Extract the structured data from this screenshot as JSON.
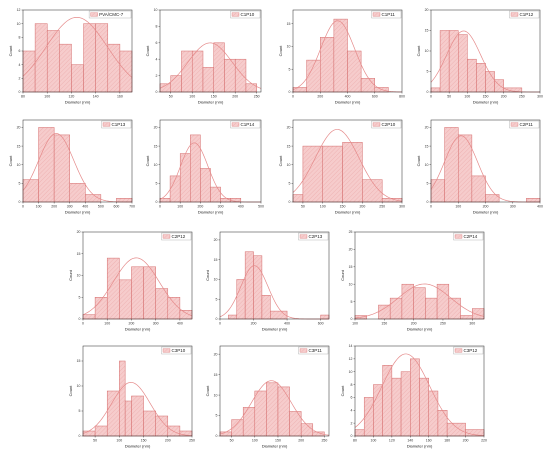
{
  "defaults": {
    "ylabel": "Count",
    "xlabel": "Diameter (nm)"
  },
  "colors": {
    "bar_fill": "#f6cccc",
    "bar_stroke": "#d46a6a",
    "curve": "#e58a8a",
    "hatch": "#e9a3a3",
    "axis": "#222222"
  },
  "chart_data": [
    {
      "type": "bar",
      "legend": "PVA/CMC-7",
      "x_ticks": [
        "80",
        "100",
        "120",
        "140",
        "160"
      ],
      "xlim": [
        80,
        170
      ],
      "y_ticks": [
        "0",
        "2",
        "4",
        "6",
        "8",
        "10",
        "12"
      ],
      "ylim": [
        0,
        12
      ],
      "bins": [
        [
          80,
          90,
          6
        ],
        [
          90,
          100,
          10
        ],
        [
          100,
          110,
          9
        ],
        [
          110,
          120,
          7
        ],
        [
          120,
          130,
          4
        ],
        [
          130,
          140,
          10
        ],
        [
          140,
          150,
          10
        ],
        [
          150,
          160,
          7
        ],
        [
          160,
          170,
          6
        ]
      ]
    },
    {
      "type": "bar",
      "legend": "C1P10",
      "x_ticks": [
        "50",
        "100",
        "150",
        "200",
        "250"
      ],
      "xlim": [
        25,
        260
      ],
      "y_ticks": [
        "0",
        "2",
        "4",
        "6",
        "8",
        "10"
      ],
      "ylim": [
        0,
        10
      ],
      "bins": [
        [
          25,
          50,
          1
        ],
        [
          50,
          75,
          2
        ],
        [
          75,
          100,
          5
        ],
        [
          100,
          125,
          5
        ],
        [
          125,
          150,
          3
        ],
        [
          150,
          175,
          6
        ],
        [
          175,
          200,
          4
        ],
        [
          200,
          225,
          4
        ],
        [
          225,
          250,
          1
        ]
      ]
    },
    {
      "type": "bar",
      "legend": "C1P11",
      "x_ticks": [
        "0",
        "200",
        "400",
        "600",
        "800"
      ],
      "xlim": [
        0,
        800
      ],
      "y_ticks": [
        "0",
        "5",
        "10",
        "15"
      ],
      "ylim": [
        0,
        18
      ],
      "bins": [
        [
          0,
          100,
          1
        ],
        [
          100,
          200,
          7
        ],
        [
          200,
          300,
          12
        ],
        [
          300,
          400,
          16
        ],
        [
          400,
          500,
          9
        ],
        [
          500,
          600,
          3
        ],
        [
          600,
          700,
          1
        ]
      ]
    },
    {
      "type": "bar",
      "legend": "C1P12",
      "x_ticks": [
        "0",
        "50",
        "100",
        "150",
        "200",
        "250",
        "300"
      ],
      "xlim": [
        0,
        300
      ],
      "y_ticks": [
        "0",
        "5",
        "10",
        "15",
        "20"
      ],
      "ylim": [
        0,
        20
      ],
      "bins": [
        [
          0,
          25,
          1
        ],
        [
          25,
          50,
          15
        ],
        [
          50,
          75,
          15
        ],
        [
          75,
          100,
          14
        ],
        [
          100,
          125,
          8
        ],
        [
          125,
          150,
          7
        ],
        [
          150,
          175,
          5
        ],
        [
          175,
          200,
          3
        ],
        [
          200,
          250,
          1
        ]
      ]
    },
    {
      "type": "bar",
      "legend": "C1P13",
      "x_ticks": [
        "0",
        "100",
        "200",
        "300",
        "400",
        "500",
        "600",
        "700"
      ],
      "xlim": [
        0,
        700
      ],
      "y_ticks": [
        "0",
        "5",
        "10",
        "15",
        "20"
      ],
      "ylim": [
        0,
        22
      ],
      "bins": [
        [
          0,
          100,
          6
        ],
        [
          100,
          200,
          20
        ],
        [
          200,
          300,
          18
        ],
        [
          300,
          400,
          5
        ],
        [
          400,
          500,
          2
        ],
        [
          500,
          600,
          0
        ],
        [
          600,
          700,
          1
        ]
      ]
    },
    {
      "type": "bar",
      "legend": "C1P14",
      "x_ticks": [
        "0",
        "100",
        "200",
        "300",
        "400",
        "500"
      ],
      "xlim": [
        0,
        500
      ],
      "y_ticks": [
        "0",
        "5",
        "10",
        "15",
        "20"
      ],
      "ylim": [
        0,
        22
      ],
      "bins": [
        [
          0,
          50,
          1
        ],
        [
          50,
          100,
          7
        ],
        [
          100,
          150,
          13
        ],
        [
          150,
          200,
          18
        ],
        [
          200,
          250,
          9
        ],
        [
          250,
          300,
          4
        ],
        [
          300,
          350,
          1
        ],
        [
          350,
          400,
          1
        ]
      ]
    },
    {
      "type": "bar",
      "legend": "C2P10",
      "x_ticks": [
        "50",
        "100",
        "150",
        "200",
        "250",
        "300"
      ],
      "xlim": [
        25,
        300
      ],
      "y_ticks": [
        "0",
        "5",
        "10",
        "15",
        "20"
      ],
      "ylim": [
        0,
        22
      ],
      "bins": [
        [
          25,
          50,
          2
        ],
        [
          50,
          100,
          15
        ],
        [
          100,
          150,
          15
        ],
        [
          150,
          200,
          16
        ],
        [
          200,
          250,
          6
        ],
        [
          250,
          300,
          1
        ]
      ]
    },
    {
      "type": "bar",
      "legend": "C2P11",
      "x_ticks": [
        "0",
        "100",
        "200",
        "300",
        "400"
      ],
      "xlim": [
        0,
        400
      ],
      "y_ticks": [
        "0",
        "5",
        "10",
        "15",
        "20"
      ],
      "ylim": [
        0,
        22
      ],
      "bins": [
        [
          0,
          50,
          6
        ],
        [
          50,
          100,
          20
        ],
        [
          100,
          150,
          18
        ],
        [
          150,
          200,
          7
        ],
        [
          200,
          250,
          2
        ],
        [
          250,
          300,
          0
        ],
        [
          350,
          400,
          1
        ]
      ]
    },
    {
      "type": "bar",
      "legend": "C2P12",
      "x_ticks": [
        "0",
        "100",
        "200",
        "300",
        "400"
      ],
      "xlim": [
        0,
        450
      ],
      "y_ticks": [
        "0",
        "5",
        "10",
        "15",
        "20"
      ],
      "ylim": [
        0,
        20
      ],
      "bins": [
        [
          0,
          50,
          1
        ],
        [
          50,
          100,
          5
        ],
        [
          100,
          150,
          14
        ],
        [
          150,
          200,
          9
        ],
        [
          200,
          250,
          12
        ],
        [
          250,
          300,
          12
        ],
        [
          300,
          350,
          7
        ],
        [
          350,
          400,
          5
        ],
        [
          400,
          450,
          2
        ]
      ]
    },
    {
      "type": "bar",
      "legend": "C2P13",
      "x_ticks": [
        "0",
        "200",
        "400",
        "600"
      ],
      "xlim": [
        0,
        650
      ],
      "y_ticks": [
        "0",
        "5",
        "10",
        "15",
        "20"
      ],
      "ylim": [
        0,
        22
      ],
      "bins": [
        [
          50,
          100,
          1
        ],
        [
          100,
          150,
          10
        ],
        [
          150,
          200,
          17
        ],
        [
          200,
          250,
          16
        ],
        [
          250,
          300,
          6
        ],
        [
          300,
          400,
          2
        ],
        [
          600,
          650,
          1
        ]
      ]
    },
    {
      "type": "bar",
      "legend": "C2P14",
      "x_ticks": [
        "100",
        "150",
        "200",
        "250",
        "300"
      ],
      "xlim": [
        100,
        320
      ],
      "y_ticks": [
        "0",
        "5",
        "10",
        "15",
        "20",
        "25"
      ],
      "ylim": [
        0,
        25
      ],
      "bins": [
        [
          100,
          120,
          1
        ],
        [
          140,
          160,
          4
        ],
        [
          160,
          180,
          6
        ],
        [
          180,
          200,
          10
        ],
        [
          200,
          220,
          9
        ],
        [
          220,
          240,
          6
        ],
        [
          240,
          260,
          10
        ],
        [
          260,
          280,
          6
        ],
        [
          280,
          300,
          1
        ],
        [
          300,
          320,
          3
        ]
      ]
    },
    {
      "type": "bar",
      "legend": "C3P10",
      "x_ticks": [
        "50",
        "100",
        "150",
        "200",
        "250"
      ],
      "xlim": [
        25,
        250
      ],
      "y_ticks": [
        "0",
        "5",
        "10",
        "15"
      ],
      "ylim": [
        0,
        18
      ],
      "bins": [
        [
          25,
          50,
          1
        ],
        [
          50,
          75,
          2
        ],
        [
          75,
          100,
          9
        ],
        [
          100,
          112,
          15
        ],
        [
          112,
          125,
          7
        ],
        [
          125,
          150,
          8
        ],
        [
          150,
          175,
          5
        ],
        [
          175,
          200,
          4
        ],
        [
          200,
          225,
          2
        ],
        [
          225,
          250,
          1
        ]
      ]
    },
    {
      "type": "bar",
      "legend": "C3P11",
      "x_ticks": [
        "50",
        "100",
        "150",
        "200",
        "250"
      ],
      "xlim": [
        25,
        260
      ],
      "y_ticks": [
        "0",
        "5",
        "10",
        "15",
        "20"
      ],
      "ylim": [
        0,
        22
      ],
      "bins": [
        [
          25,
          50,
          1
        ],
        [
          50,
          75,
          4
        ],
        [
          75,
          100,
          7
        ],
        [
          100,
          125,
          11
        ],
        [
          125,
          150,
          13
        ],
        [
          150,
          175,
          12
        ],
        [
          175,
          200,
          6
        ],
        [
          200,
          225,
          3
        ],
        [
          225,
          250,
          1
        ]
      ]
    },
    {
      "type": "bar",
      "legend": "C3P12",
      "x_ticks": [
        "80",
        "100",
        "120",
        "140",
        "160",
        "180",
        "200",
        "220"
      ],
      "xlim": [
        80,
        220
      ],
      "y_ticks": [
        "0",
        "2",
        "4",
        "6",
        "8",
        "10",
        "12",
        "14"
      ],
      "ylim": [
        0,
        14
      ],
      "bins": [
        [
          80,
          90,
          1
        ],
        [
          90,
          100,
          6
        ],
        [
          100,
          110,
          8
        ],
        [
          110,
          120,
          11
        ],
        [
          120,
          130,
          9
        ],
        [
          130,
          140,
          10
        ],
        [
          140,
          150,
          12
        ],
        [
          150,
          160,
          9
        ],
        [
          160,
          170,
          7
        ],
        [
          170,
          180,
          4
        ],
        [
          180,
          200,
          2
        ],
        [
          200,
          220,
          1
        ]
      ]
    }
  ]
}
